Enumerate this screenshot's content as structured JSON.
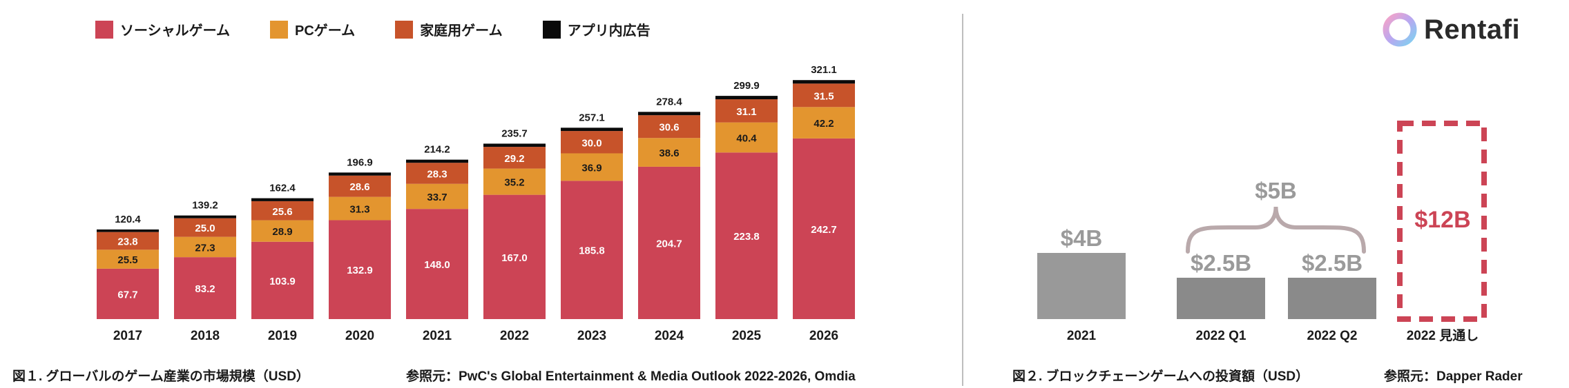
{
  "logo": {
    "name": "Rentafi",
    "icon": "rentafi-logo-icon"
  },
  "colors": {
    "social": "#cc4455",
    "pc": "#e3952f",
    "console": "#c7532a",
    "inapp": "#0a0a0a",
    "invest_bar": "#999999",
    "invest_bar_dark": "#8a8a8a",
    "invest_label": "#9a9a9a",
    "brace": "#b9a9ab",
    "forecast": "#cc4455"
  },
  "legend": [
    {
      "label": "ソーシャルゲーム",
      "color": "#cc4455"
    },
    {
      "label": "PCゲーム",
      "color": "#e3952f"
    },
    {
      "label": "家庭用ゲーム",
      "color": "#c7532a"
    },
    {
      "label": "アプリ内広告",
      "color": "#0a0a0a"
    }
  ],
  "chart_data": [
    {
      "type": "bar",
      "stacked": true,
      "title": "図１. グローバルのゲーム産業の市場規模（USD）",
      "source": "参照元：PwC's Global Entertainment & Media Outlook 2022-2026, Omdia",
      "categories": [
        "2017",
        "2018",
        "2019",
        "2020",
        "2021",
        "2022",
        "2023",
        "2024",
        "2025",
        "2026"
      ],
      "series": [
        {
          "name": "ソーシャルゲーム",
          "values": [
            67.7,
            83.2,
            103.9,
            132.9,
            148.0,
            167.0,
            185.8,
            204.7,
            223.8,
            242.7
          ]
        },
        {
          "name": "PCゲーム",
          "values": [
            25.5,
            27.3,
            28.9,
            31.3,
            33.7,
            35.2,
            36.9,
            38.6,
            40.4,
            42.2
          ]
        },
        {
          "name": "家庭用ゲーム",
          "values": [
            23.8,
            25.0,
            25.6,
            28.6,
            28.3,
            29.2,
            30.0,
            30.6,
            31.1,
            31.5
          ]
        },
        {
          "name": "アプリ内広告",
          "values": [
            3.4,
            3.7,
            4.0,
            4.1,
            4.2,
            4.3,
            4.4,
            4.5,
            4.6,
            4.7
          ]
        }
      ],
      "totals": [
        "120.4",
        "139.2",
        "162.4",
        "196.9",
        "214.2",
        "235.7",
        "257.1",
        "278.4",
        "299.9",
        "321.1"
      ],
      "segment_labels": [
        [
          "67.7",
          "25.5",
          "23.8"
        ],
        [
          "83.2",
          "27.3",
          "25.0"
        ],
        [
          "103.9",
          "28.9",
          "25.6"
        ],
        [
          "132.9",
          "31.3",
          "28.6"
        ],
        [
          "148.0",
          "33.7",
          "28.3"
        ],
        [
          "167.0",
          "35.2",
          "29.2"
        ],
        [
          "185.8",
          "36.9",
          "30.0"
        ],
        [
          "204.7",
          "38.6",
          "30.6"
        ],
        [
          "223.8",
          "40.4",
          "31.1"
        ],
        [
          "242.7",
          "42.2",
          "31.5"
        ]
      ],
      "ylim": [
        0,
        330
      ]
    },
    {
      "type": "bar",
      "title": "図２. ブロックチェーンゲームへの投資額（USD）",
      "source": "参照元：Dapper Rader",
      "categories": [
        "2021",
        "2022 Q1",
        "2022 Q2",
        "2022 見通し"
      ],
      "values": [
        4,
        2.5,
        2.5,
        12
      ],
      "value_labels": [
        "$4B",
        "$2.5B",
        "$2.5B",
        "$12B"
      ],
      "forecast_index": 3,
      "group_annotation": {
        "label": "$5B",
        "spans": [
          "2022 Q1",
          "2022 Q2"
        ]
      },
      "ylim": [
        0,
        12
      ]
    }
  ]
}
